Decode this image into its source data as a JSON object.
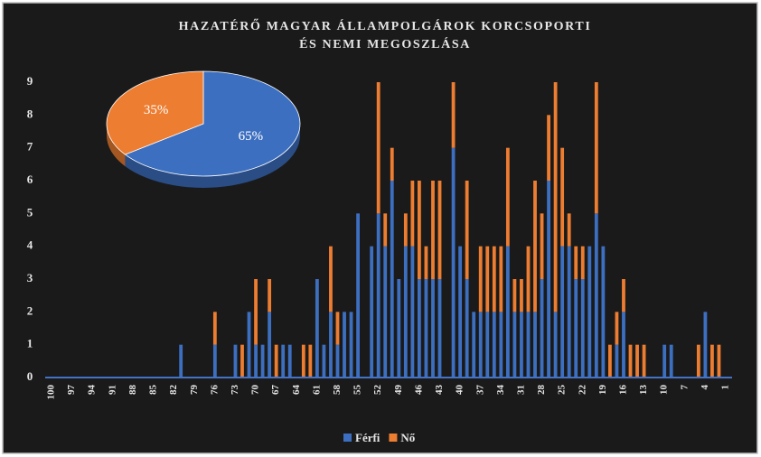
{
  "chart_data": [
    {
      "type": "bar",
      "stacked": true,
      "title": [
        "HAZATÉRŐ MAGYAR ÁLLAMPOLGÁROK KORCSOPORTI",
        "ÉS NEMI MEGOSZLÁSA"
      ],
      "categories": [
        "100",
        null,
        null,
        "97",
        null,
        null,
        "94",
        null,
        null,
        "91",
        null,
        null,
        "88",
        null,
        null,
        "85",
        null,
        null,
        "82",
        null,
        null,
        "79",
        null,
        null,
        "76",
        null,
        null,
        "73",
        null,
        null,
        "70",
        null,
        null,
        "67",
        null,
        null,
        "64",
        null,
        null,
        "61",
        null,
        null,
        "58",
        null,
        null,
        "55",
        null,
        null,
        "52",
        null,
        null,
        "49",
        null,
        null,
        "46",
        null,
        null,
        "43",
        null,
        null,
        "40",
        null,
        null,
        "37",
        null,
        null,
        "34",
        null,
        null,
        "31",
        null,
        null,
        "28",
        null,
        null,
        "25",
        null,
        null,
        "22",
        null,
        null,
        "19",
        null,
        null,
        "16",
        null,
        null,
        "13",
        null,
        null,
        "10",
        null,
        null,
        "7",
        null,
        null,
        "4",
        null,
        null,
        "1"
      ],
      "series": [
        {
          "name": "Férfi",
          "color": "#3d6fc0",
          "values": [
            0,
            0,
            0,
            0,
            0,
            0,
            0,
            0,
            0,
            0,
            0,
            0,
            0,
            0,
            0,
            0,
            0,
            0,
            0,
            1,
            0,
            0,
            0,
            0,
            1,
            0,
            0,
            1,
            0,
            2,
            1,
            1,
            2,
            0,
            1,
            1,
            0,
            0,
            0,
            3,
            1,
            2,
            1,
            2,
            2,
            5,
            0,
            4,
            5,
            4,
            6,
            3,
            4,
            4,
            3,
            3,
            3,
            3,
            0,
            7,
            4,
            3,
            2,
            2,
            2,
            2,
            2,
            4,
            2,
            2,
            2,
            2,
            3,
            6,
            2,
            4,
            4,
            3,
            3,
            4,
            5,
            4,
            0,
            1,
            2,
            0,
            0,
            0,
            0,
            0,
            1,
            1,
            0,
            0,
            0,
            0,
            2,
            0,
            0,
            0
          ]
        },
        {
          "name": "Nő",
          "color": "#ed7d31",
          "values": [
            0,
            0,
            0,
            0,
            0,
            0,
            0,
            0,
            0,
            0,
            0,
            0,
            0,
            0,
            0,
            0,
            0,
            0,
            0,
            0,
            0,
            0,
            0,
            0,
            1,
            0,
            0,
            0,
            1,
            0,
            2,
            0,
            1,
            1,
            0,
            0,
            0,
            1,
            1,
            0,
            0,
            2,
            1,
            0,
            0,
            0,
            0,
            0,
            4,
            1,
            1,
            0,
            1,
            2,
            3,
            1,
            3,
            3,
            0,
            2,
            0,
            3,
            0,
            2,
            2,
            2,
            2,
            3,
            1,
            1,
            2,
            4,
            2,
            2,
            7,
            3,
            1,
            1,
            1,
            0,
            4,
            0,
            1,
            1,
            1,
            1,
            1,
            1,
            0,
            0,
            0,
            0,
            0,
            0,
            0,
            1,
            0,
            1,
            1,
            0
          ]
        }
      ],
      "ylim": [
        0,
        9
      ],
      "yticks": [
        0,
        1,
        2,
        3,
        4,
        5,
        6,
        7,
        8,
        9
      ],
      "legend": "bottom"
    },
    {
      "type": "pie",
      "values": [
        65,
        35
      ],
      "value_labels": [
        "65%",
        "35%"
      ],
      "colors": [
        "#3d6fc0",
        "#ed7d31"
      ]
    }
  ]
}
